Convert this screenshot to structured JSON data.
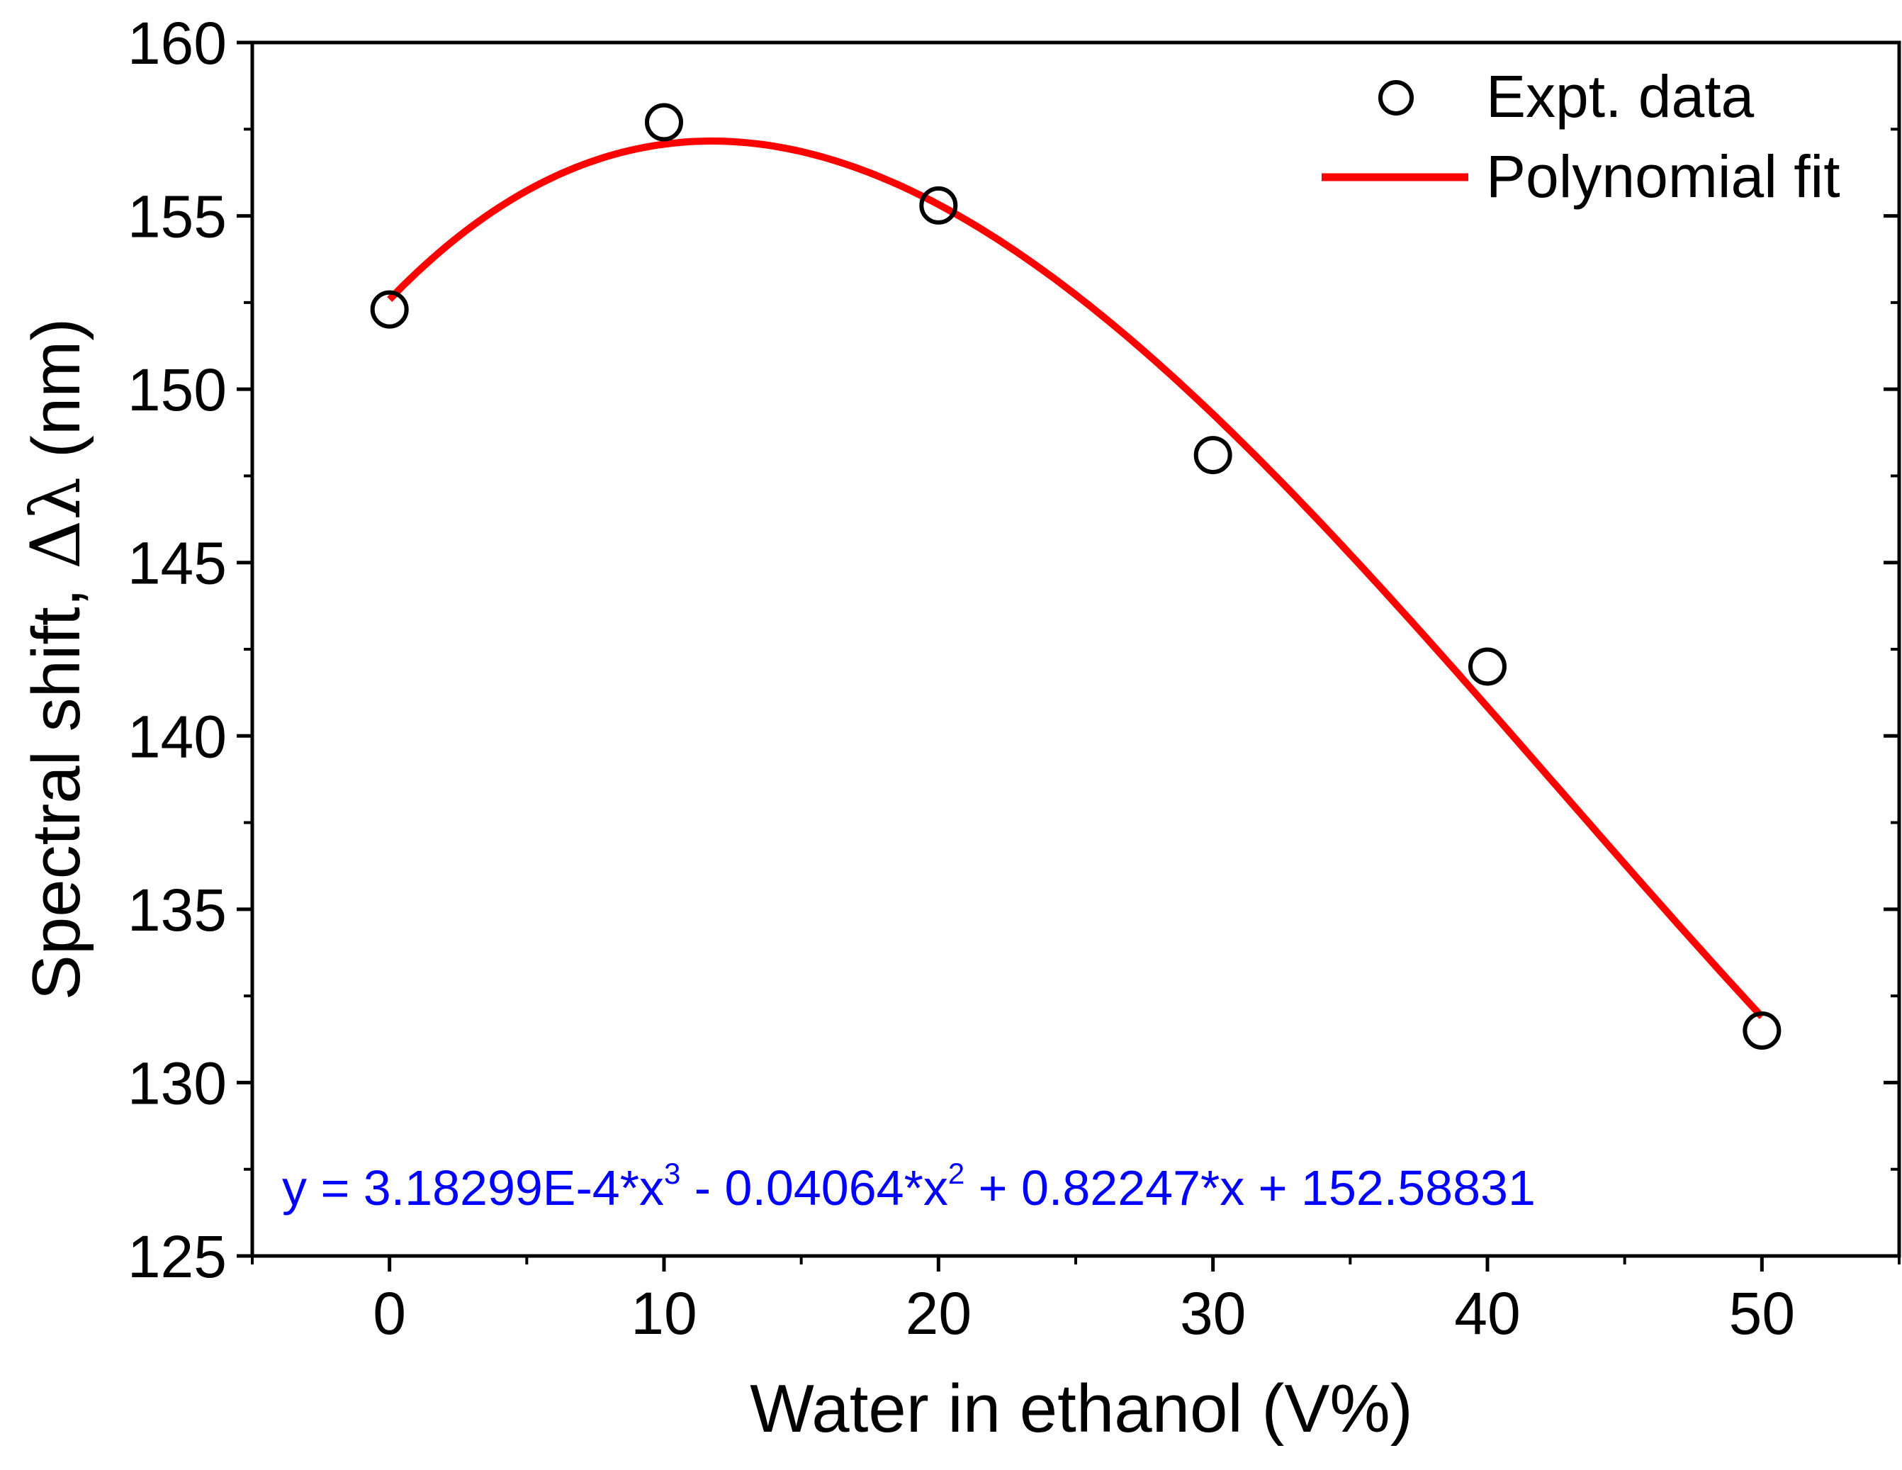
{
  "chart_data": {
    "type": "scatter",
    "title": "",
    "xlabel": "Water in ethanol (V%)",
    "ylabel_prefix": "Spectral shift, ",
    "ylabel_symbol": "Δλ",
    "ylabel_suffix": " (nm)",
    "xlim": [
      -5,
      55
    ],
    "ylim": [
      125,
      160
    ],
    "x_ticks": [
      0,
      10,
      20,
      30,
      40,
      50
    ],
    "x_tick_labels": [
      "0",
      "10",
      "20",
      "30",
      "40",
      "50"
    ],
    "y_ticks": [
      125,
      130,
      135,
      140,
      145,
      150,
      155,
      160
    ],
    "y_tick_labels": [
      "125",
      "130",
      "135",
      "140",
      "145",
      "150",
      "155",
      "160"
    ],
    "grid": false,
    "legend_position": "top-right",
    "series": [
      {
        "name": "Expt. data",
        "kind": "scatter",
        "marker": "open-circle",
        "color": "#000000",
        "x": [
          0,
          10,
          20,
          30,
          40,
          50
        ],
        "y": [
          152.3,
          157.7,
          155.3,
          148.1,
          142.0,
          131.5
        ]
      },
      {
        "name": "Polynomial fit",
        "kind": "line",
        "color": "#ff0000",
        "x_range": [
          0,
          50
        ],
        "coefficients": [
          152.58831,
          0.82247,
          -0.04064,
          0.000318299
        ]
      }
    ],
    "annotation": {
      "color": "#0000ff",
      "part1": "y = 3.18299E-4*x",
      "exp1": "3",
      "part2": " - 0.04064*x",
      "exp2": "2",
      "part3": " + 0.82247*x + 152.58831"
    }
  }
}
